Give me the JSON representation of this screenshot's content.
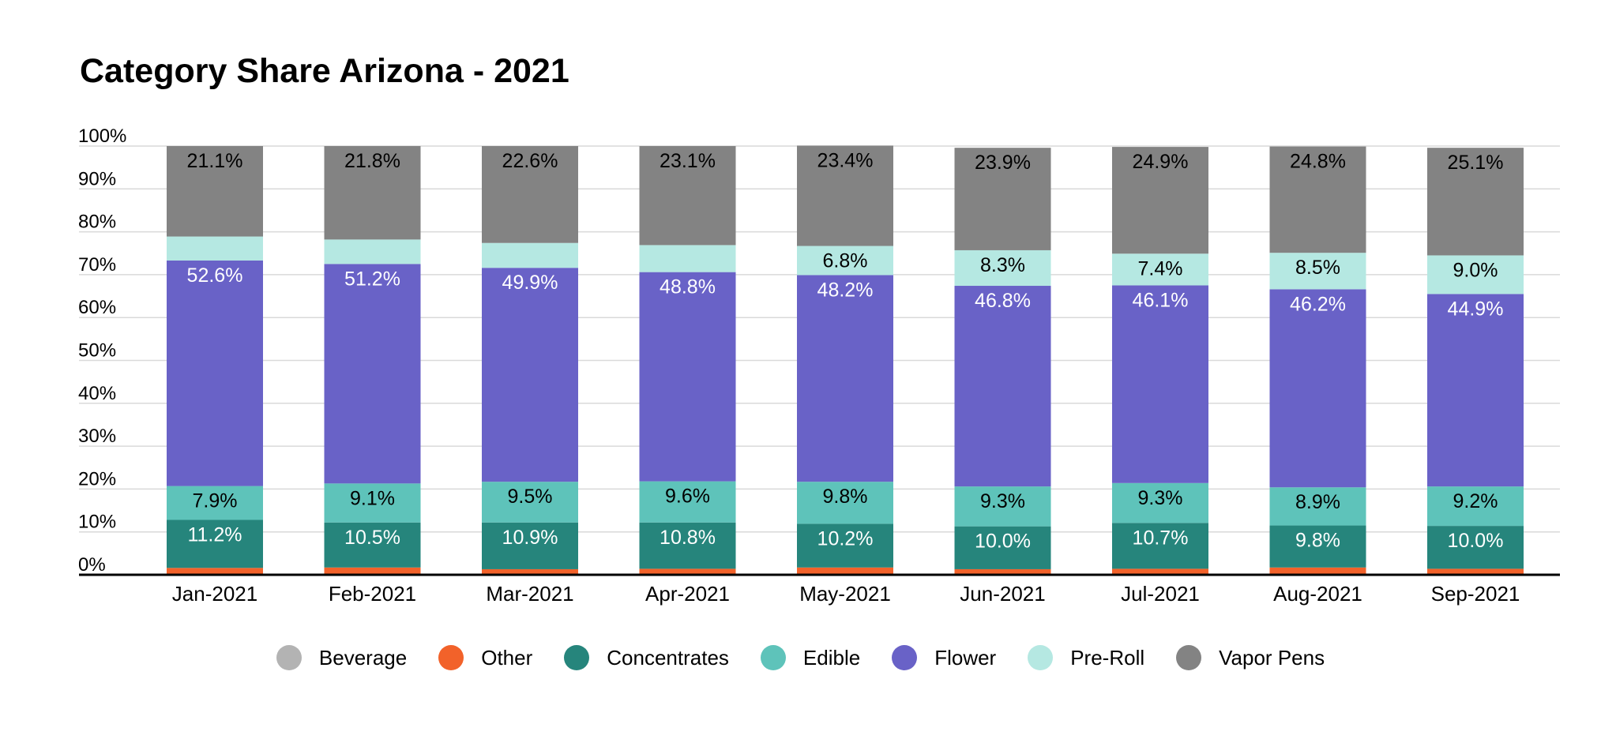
{
  "chart_data": {
    "type": "bar",
    "stacked": true,
    "title": "Category Share Arizona - 2021",
    "xlabel": "",
    "ylabel": "",
    "ylim": [
      0,
      100
    ],
    "y_ticks": [
      "0%",
      "10%",
      "20%",
      "30%",
      "40%",
      "50%",
      "60%",
      "70%",
      "80%",
      "90%",
      "100%"
    ],
    "grid": true,
    "legend_position": "bottom",
    "categories": [
      "Jan-2021",
      "Feb-2021",
      "Mar-2021",
      "Apr-2021",
      "May-2021",
      "Jun-2021",
      "Jul-2021",
      "Aug-2021",
      "Sep-2021"
    ],
    "series": [
      {
        "name": "Beverage",
        "color": "#b3b3b3",
        "values": [
          0.2,
          0.2,
          0.2,
          0.2,
          0.2,
          0.2,
          0.2,
          0.2,
          0.2
        ],
        "labels": [
          "",
          "",
          "",
          "",
          "",
          "",
          "",
          "",
          ""
        ],
        "label_color": "#000000"
      },
      {
        "name": "Other",
        "color": "#f2622a",
        "values": [
          1.4,
          1.5,
          1.1,
          1.2,
          1.5,
          1.1,
          1.2,
          1.5,
          1.2
        ],
        "labels": [
          "",
          "",
          "",
          "",
          "",
          "",
          "",
          "",
          ""
        ],
        "label_color": "#000000"
      },
      {
        "name": "Concentrates",
        "color": "#26857c",
        "values": [
          11.2,
          10.5,
          10.9,
          10.8,
          10.2,
          10.0,
          10.7,
          9.8,
          10.0
        ],
        "labels": [
          "11.2%",
          "10.5%",
          "10.9%",
          "10.8%",
          "10.2%",
          "10.0%",
          "10.7%",
          "9.8%",
          "10.0%"
        ],
        "label_color": "#ffffff"
      },
      {
        "name": "Edible",
        "color": "#5ec3ba",
        "values": [
          7.9,
          9.1,
          9.5,
          9.6,
          9.8,
          9.3,
          9.3,
          8.9,
          9.2
        ],
        "labels": [
          "7.9%",
          "9.1%",
          "9.5%",
          "9.6%",
          "9.8%",
          "9.3%",
          "9.3%",
          "8.9%",
          "9.2%"
        ],
        "label_color": "#000000"
      },
      {
        "name": "Flower",
        "color": "#6962c7",
        "values": [
          52.6,
          51.2,
          49.9,
          48.8,
          48.2,
          46.8,
          46.1,
          46.2,
          44.9
        ],
        "labels": [
          "52.6%",
          "51.2%",
          "49.9%",
          "48.8%",
          "48.2%",
          "46.8%",
          "46.1%",
          "46.2%",
          "44.9%"
        ],
        "label_color": "#ffffff"
      },
      {
        "name": "Pre-Roll",
        "color": "#b5e8e2",
        "values": [
          5.6,
          5.7,
          5.8,
          6.3,
          6.8,
          8.3,
          7.4,
          8.5,
          9.0
        ],
        "labels": [
          "",
          "",
          "",
          "",
          "6.8%",
          "8.3%",
          "7.4%",
          "8.5%",
          "9.0%"
        ],
        "label_color": "#000000"
      },
      {
        "name": "Vapor Pens",
        "color": "#838383",
        "values": [
          21.1,
          21.8,
          22.6,
          23.1,
          23.4,
          23.9,
          24.9,
          24.8,
          25.1
        ],
        "labels": [
          "21.1%",
          "21.8%",
          "22.6%",
          "23.1%",
          "23.4%",
          "23.9%",
          "24.9%",
          "24.8%",
          "25.1%"
        ],
        "label_color": "#000000"
      }
    ]
  }
}
